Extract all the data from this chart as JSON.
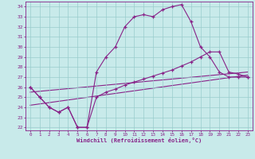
{
  "xlabel": "Windchill (Refroidissement éolien,°C)",
  "xlim": [
    -0.5,
    23.5
  ],
  "ylim": [
    21.7,
    34.5
  ],
  "yticks": [
    22,
    23,
    24,
    25,
    26,
    27,
    28,
    29,
    30,
    31,
    32,
    33,
    34
  ],
  "xticks": [
    0,
    1,
    2,
    3,
    4,
    5,
    6,
    7,
    8,
    9,
    10,
    11,
    12,
    13,
    14,
    15,
    16,
    17,
    18,
    19,
    20,
    21,
    22,
    23
  ],
  "bg_color": "#c8eaea",
  "line_color": "#882288",
  "grid_color": "#99cccc",
  "line1_x": [
    0,
    1,
    2,
    3,
    4,
    5,
    6,
    7,
    8,
    9,
    10,
    11,
    12,
    13,
    14,
    15,
    16,
    17,
    18,
    19,
    20,
    21,
    22,
    23
  ],
  "line1_y": [
    26.0,
    25.0,
    24.0,
    23.5,
    24.0,
    22.0,
    22.0,
    27.5,
    29.0,
    30.0,
    32.0,
    33.0,
    33.2,
    33.0,
    33.7,
    34.0,
    34.2,
    32.5,
    30.0,
    29.0,
    27.5,
    27.0,
    27.0,
    27.0
  ],
  "line2_x": [
    0,
    1,
    2,
    3,
    4,
    5,
    6,
    7,
    8,
    9,
    10,
    11,
    12,
    13,
    14,
    15,
    16,
    17,
    18,
    19,
    20,
    21,
    22,
    23
  ],
  "line2_y": [
    26.0,
    25.0,
    24.0,
    23.5,
    24.0,
    22.0,
    22.0,
    25.0,
    25.5,
    25.8,
    26.2,
    26.5,
    26.8,
    27.1,
    27.4,
    27.7,
    28.1,
    28.5,
    29.0,
    29.5,
    29.5,
    27.5,
    27.3,
    27.0
  ],
  "line3_x": [
    0,
    23
  ],
  "line3_y": [
    24.2,
    27.2
  ],
  "line4_x": [
    0,
    23
  ],
  "line4_y": [
    25.5,
    27.5
  ]
}
